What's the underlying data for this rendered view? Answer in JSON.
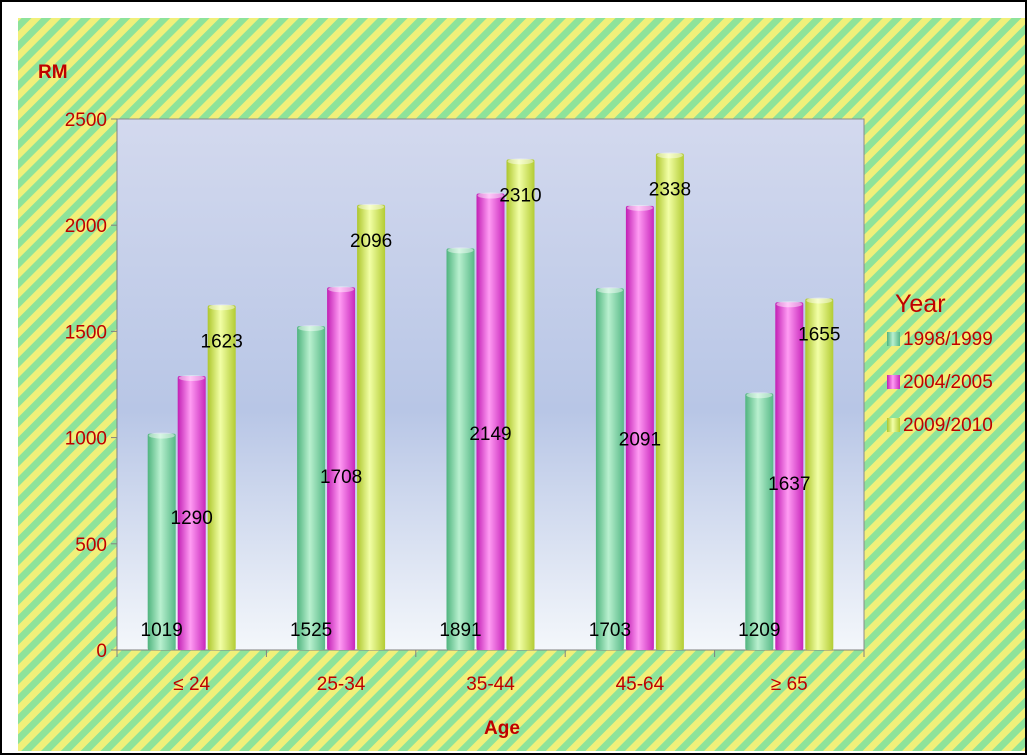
{
  "chart_data": {
    "type": "bar",
    "ylabel": "RM",
    "xlabel": "Age",
    "categories": [
      "≤ 24",
      "25-34",
      "35-44",
      "45-64",
      "≥ 65"
    ],
    "ylim": [
      0,
      2500
    ],
    "yticks": [
      0,
      500,
      1000,
      1500,
      2000,
      2500
    ],
    "legend_title": "Year",
    "legend_position": "right",
    "series": [
      {
        "name": "1998/1999",
        "values": [
          1019,
          1525,
          1891,
          1703,
          1209
        ],
        "color": "#7fd6a6"
      },
      {
        "name": "2004/2005",
        "values": [
          1290,
          1708,
          2149,
          2091,
          1637
        ],
        "color": "#e84fd8"
      },
      {
        "name": "2009/2010",
        "values": [
          1623,
          2096,
          2310,
          2338,
          1655
        ],
        "color": "#d6ec5a"
      }
    ],
    "colors": {
      "label_red": "#c00000",
      "title_red": "#c00000",
      "background_stripe_green": "#8fe08f",
      "background_stripe_yellow": "#f2f27a",
      "plot_area_top": "#c9d2ea",
      "plot_area_bottom": "#ffffff"
    }
  }
}
